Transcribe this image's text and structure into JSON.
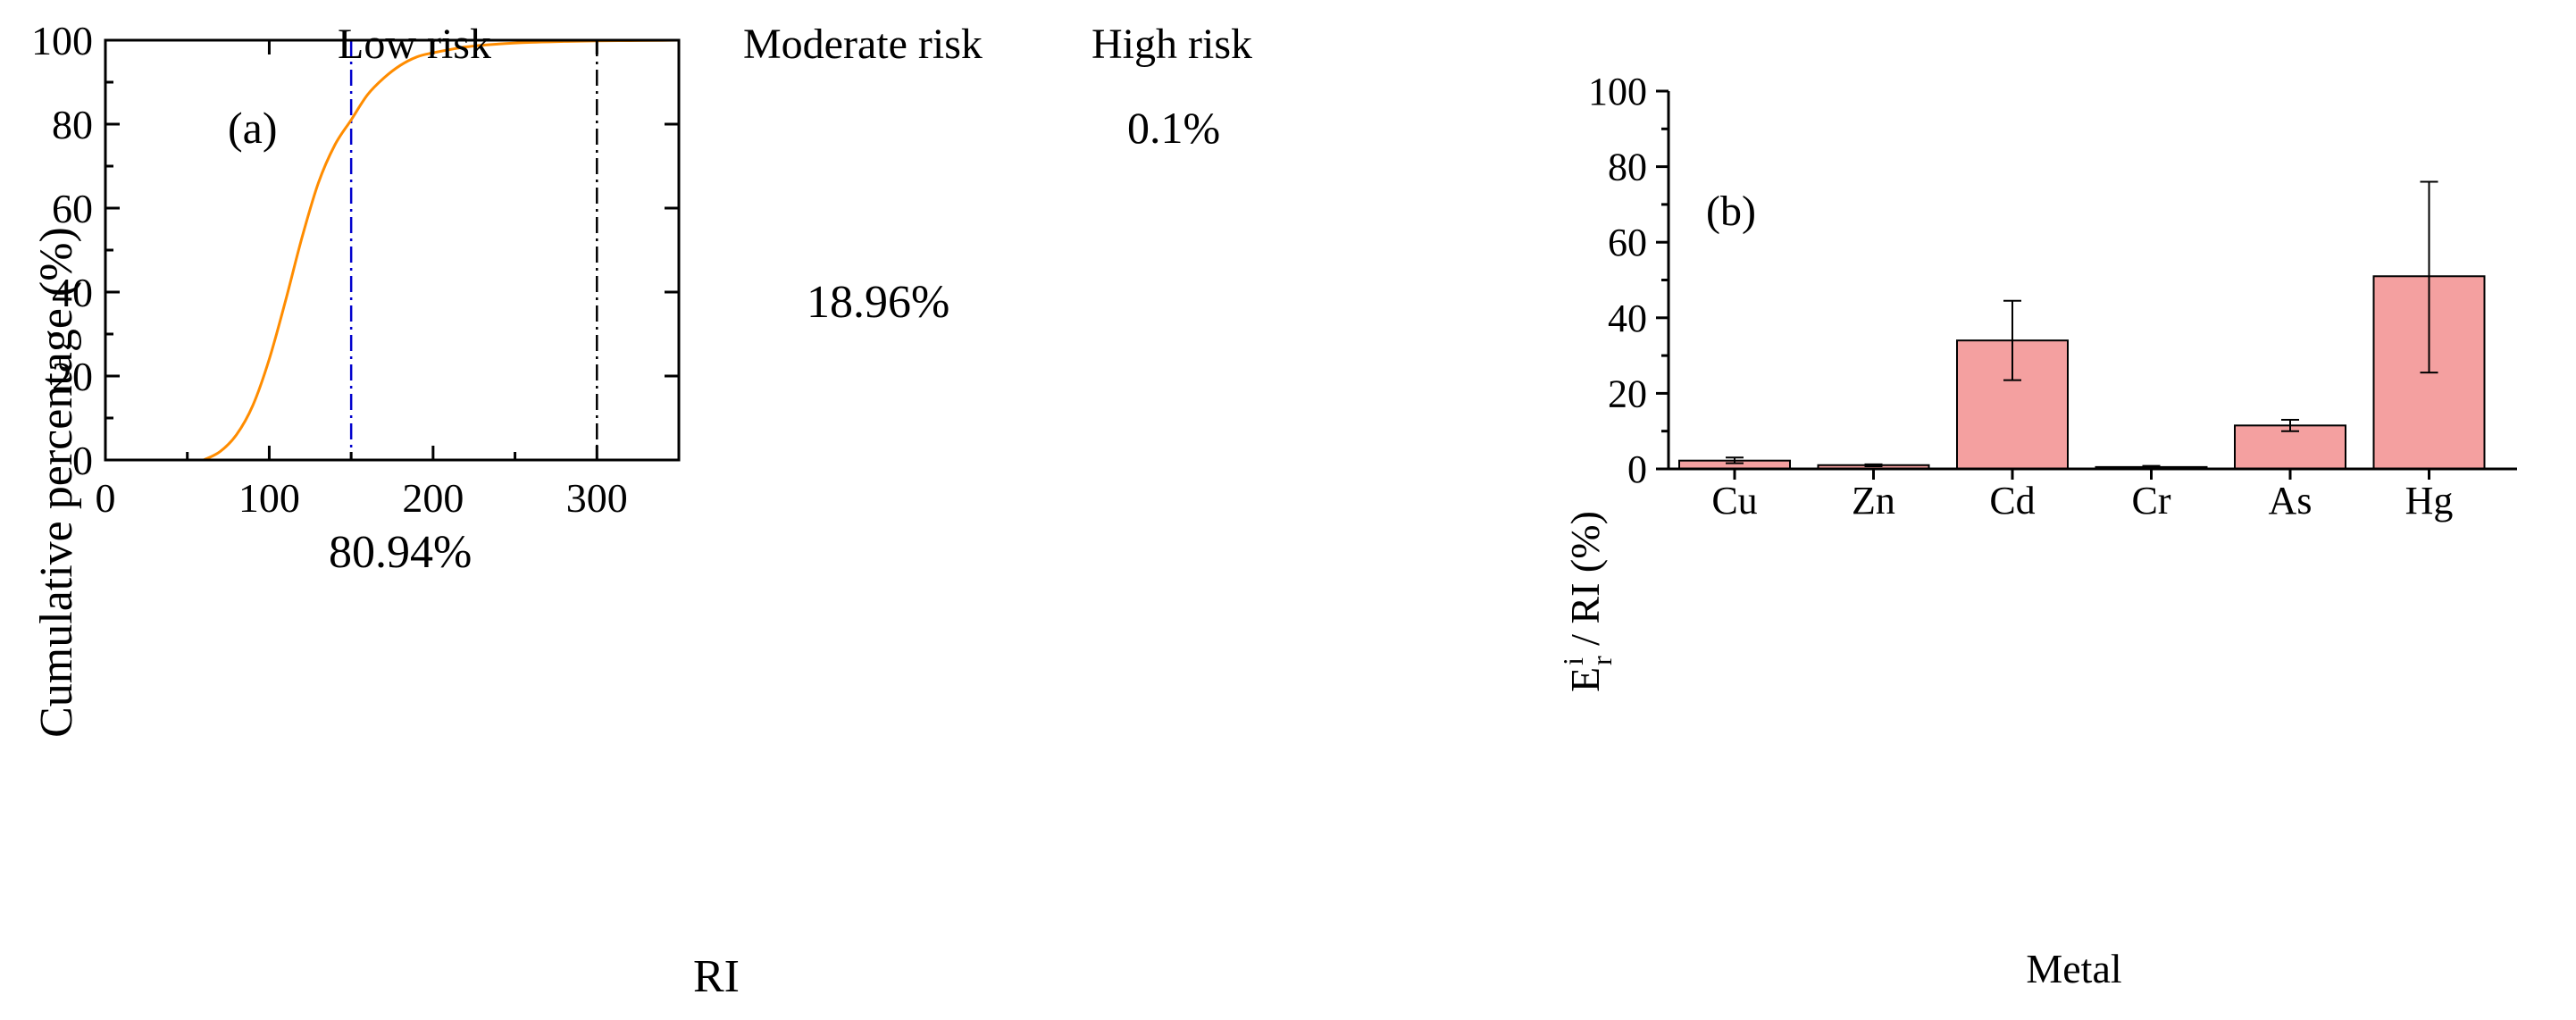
{
  "colors": {
    "curve": "#FF8C00",
    "moderate_line": "#0000CD",
    "high_line": "#000000",
    "bar_fill": "#F4A0A0",
    "bar_stroke": "#000000"
  },
  "chart_data": [
    {
      "type": "line",
      "panel_label": "(a)",
      "xlabel": "RI",
      "ylabel": "Cumulative percentage (%)",
      "xlim": [
        0,
        350
      ],
      "ylim": [
        0,
        100
      ],
      "xticks": [
        0,
        100,
        200,
        300
      ],
      "yticks": [
        0,
        20,
        40,
        60,
        80,
        100
      ],
      "series": [
        {
          "name": "cumulative",
          "x": [
            60,
            70,
            80,
            90,
            100,
            110,
            120,
            130,
            140,
            150,
            160,
            170,
            180,
            190,
            200,
            220,
            240,
            260,
            280,
            300,
            320,
            340,
            350
          ],
          "y": [
            0,
            2,
            6,
            13,
            24,
            38,
            53,
            66,
            75,
            81,
            87,
            91,
            94,
            96,
            97,
            98.4,
            99.1,
            99.5,
            99.7,
            99.85,
            99.9,
            99.95,
            100
          ]
        }
      ],
      "thresholds": [
        {
          "x": 150,
          "style": "dash-dot-blue"
        },
        {
          "x": 300,
          "style": "dash-dot-black"
        }
      ],
      "header_labels": [
        "Low risk",
        "Moderate risk",
        "High risk"
      ],
      "annotations": [
        "80.94%",
        "18.96%",
        "0.1%"
      ]
    },
    {
      "type": "bar",
      "panel_label": "(b)",
      "xlabel": "Metal",
      "ylabel": "E",
      "ylabel_sup": "i",
      "ylabel_sub": "r",
      "ylabel_rest": " / RI (%)",
      "ylim": [
        0,
        100
      ],
      "yticks": [
        0,
        20,
        40,
        60,
        80,
        100
      ],
      "categories": [
        "Cu",
        "Zn",
        "Cd",
        "Cr",
        "As",
        "Hg"
      ],
      "values": [
        2.2,
        1.0,
        34.0,
        0.5,
        11.5,
        51.0
      ],
      "error_low": [
        1.5,
        0.7,
        23.5,
        0.3,
        10.0,
        25.5
      ],
      "error_high": [
        3.0,
        1.2,
        44.5,
        0.8,
        13.0,
        76.0
      ]
    }
  ]
}
